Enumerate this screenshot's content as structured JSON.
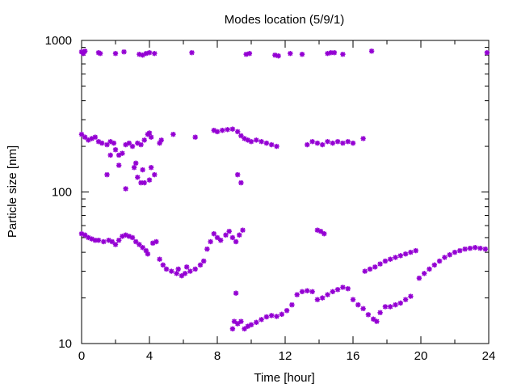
{
  "chart_data": {
    "type": "scatter",
    "title": "Modes location (5/9/1)",
    "xlabel": "Time [hour]",
    "ylabel": "Particle size [nm]",
    "xlim": [
      0,
      24
    ],
    "ylim": [
      10,
      1000
    ],
    "yscale": "log",
    "x_ticks": [
      "0",
      "4",
      "8",
      "12",
      "16",
      "20",
      "24"
    ],
    "y_ticks": [
      "10",
      "100",
      "1000"
    ],
    "grid": false,
    "marker_color": "#9400d3",
    "points": [
      [
        0.0,
        840
      ],
      [
        0.1,
        820
      ],
      [
        0.2,
        850
      ],
      [
        1.0,
        830
      ],
      [
        1.1,
        820
      ],
      [
        2.0,
        820
      ],
      [
        2.5,
        840
      ],
      [
        3.4,
        810
      ],
      [
        3.6,
        800
      ],
      [
        3.8,
        820
      ],
      [
        4.0,
        830
      ],
      [
        4.3,
        820
      ],
      [
        6.5,
        830
      ],
      [
        9.7,
        810
      ],
      [
        9.9,
        820
      ],
      [
        11.4,
        800
      ],
      [
        11.6,
        790
      ],
      [
        12.3,
        820
      ],
      [
        13.0,
        810
      ],
      [
        14.5,
        820
      ],
      [
        14.7,
        830
      ],
      [
        14.9,
        830
      ],
      [
        15.4,
        810
      ],
      [
        17.1,
        850
      ],
      [
        23.9,
        830
      ],
      [
        0.0,
        240
      ],
      [
        0.2,
        230
      ],
      [
        0.4,
        220
      ],
      [
        0.6,
        225
      ],
      [
        0.8,
        230
      ],
      [
        1.0,
        215
      ],
      [
        1.2,
        210
      ],
      [
        1.5,
        205
      ],
      [
        1.7,
        215
      ],
      [
        1.9,
        210
      ],
      [
        2.0,
        190
      ],
      [
        2.2,
        175
      ],
      [
        2.4,
        180
      ],
      [
        2.6,
        205
      ],
      [
        2.8,
        210
      ],
      [
        3.0,
        200
      ],
      [
        3.3,
        210
      ],
      [
        3.5,
        205
      ],
      [
        3.7,
        220
      ],
      [
        3.9,
        240
      ],
      [
        4.0,
        245
      ],
      [
        4.1,
        230
      ],
      [
        4.6,
        210
      ],
      [
        4.7,
        220
      ],
      [
        5.4,
        240
      ],
      [
        6.7,
        230
      ],
      [
        7.8,
        255
      ],
      [
        8.0,
        250
      ],
      [
        8.3,
        255
      ],
      [
        8.6,
        258
      ],
      [
        8.9,
        260
      ],
      [
        9.2,
        250
      ],
      [
        9.4,
        235
      ],
      [
        9.6,
        225
      ],
      [
        9.8,
        220
      ],
      [
        10.0,
        215
      ],
      [
        10.3,
        220
      ],
      [
        10.6,
        215
      ],
      [
        10.9,
        210
      ],
      [
        11.2,
        205
      ],
      [
        11.5,
        200
      ],
      [
        13.3,
        205
      ],
      [
        13.6,
        215
      ],
      [
        13.9,
        210
      ],
      [
        14.2,
        205
      ],
      [
        14.5,
        215
      ],
      [
        14.8,
        210
      ],
      [
        15.1,
        215
      ],
      [
        15.4,
        210
      ],
      [
        15.7,
        215
      ],
      [
        16.0,
        210
      ],
      [
        16.6,
        225
      ],
      [
        1.5,
        130
      ],
      [
        1.7,
        175
      ],
      [
        2.2,
        150
      ],
      [
        2.6,
        105
      ],
      [
        3.1,
        145
      ],
      [
        3.2,
        155
      ],
      [
        3.3,
        125
      ],
      [
        3.5,
        115
      ],
      [
        3.6,
        140
      ],
      [
        3.7,
        115
      ],
      [
        4.0,
        120
      ],
      [
        4.1,
        145
      ],
      [
        4.3,
        130
      ],
      [
        9.2,
        130
      ],
      [
        9.4,
        115
      ],
      [
        0.0,
        53
      ],
      [
        0.2,
        52
      ],
      [
        0.4,
        50
      ],
      [
        0.6,
        49
      ],
      [
        0.8,
        48
      ],
      [
        1.0,
        48
      ],
      [
        1.3,
        47
      ],
      [
        1.6,
        48
      ],
      [
        1.8,
        47
      ],
      [
        2.0,
        45
      ],
      [
        2.2,
        48
      ],
      [
        2.4,
        51
      ],
      [
        2.6,
        52
      ],
      [
        2.8,
        51
      ],
      [
        3.0,
        50
      ],
      [
        3.2,
        47
      ],
      [
        3.4,
        45
      ],
      [
        3.6,
        43
      ],
      [
        3.8,
        41
      ],
      [
        3.9,
        39
      ],
      [
        4.2,
        46
      ],
      [
        4.4,
        47
      ],
      [
        4.6,
        36
      ],
      [
        4.8,
        33
      ],
      [
        5.0,
        31
      ],
      [
        5.3,
        30
      ],
      [
        5.6,
        29
      ],
      [
        5.9,
        28
      ],
      [
        6.1,
        29
      ],
      [
        6.4,
        30
      ],
      [
        6.7,
        31
      ],
      [
        7.0,
        33
      ],
      [
        7.2,
        35
      ],
      [
        7.4,
        42
      ],
      [
        7.6,
        47
      ],
      [
        7.8,
        53
      ],
      [
        8.0,
        50
      ],
      [
        8.2,
        48
      ],
      [
        8.5,
        52
      ],
      [
        8.7,
        55
      ],
      [
        8.9,
        50
      ],
      [
        9.1,
        47
      ],
      [
        9.3,
        52
      ],
      [
        9.5,
        56
      ],
      [
        5.7,
        31
      ],
      [
        6.2,
        32
      ],
      [
        8.9,
        12.5
      ],
      [
        9.0,
        14
      ],
      [
        9.2,
        13.5
      ],
      [
        9.4,
        14
      ],
      [
        9.6,
        12.5
      ],
      [
        9.8,
        13
      ],
      [
        10.0,
        13.3
      ],
      [
        10.3,
        13.8
      ],
      [
        10.6,
        14.4
      ],
      [
        10.9,
        15
      ],
      [
        11.2,
        15.3
      ],
      [
        11.5,
        15.1
      ],
      [
        11.8,
        15.6
      ],
      [
        12.1,
        16.5
      ],
      [
        12.4,
        18
      ],
      [
        12.7,
        21
      ],
      [
        13.0,
        22
      ],
      [
        13.3,
        22.3
      ],
      [
        13.6,
        22
      ],
      [
        13.9,
        19.5
      ],
      [
        14.2,
        20
      ],
      [
        14.5,
        21
      ],
      [
        14.8,
        22
      ],
      [
        15.1,
        22.7
      ],
      [
        15.4,
        23.5
      ],
      [
        15.7,
        23
      ],
      [
        16.0,
        19.5
      ],
      [
        16.3,
        18
      ],
      [
        16.6,
        17
      ],
      [
        16.9,
        15.5
      ],
      [
        17.2,
        14.5
      ],
      [
        17.4,
        14
      ],
      [
        17.6,
        16
      ],
      [
        17.9,
        17.5
      ],
      [
        18.2,
        17.5
      ],
      [
        18.5,
        18
      ],
      [
        18.8,
        18.5
      ],
      [
        19.1,
        19.5
      ],
      [
        19.4,
        20.5
      ],
      [
        9.1,
        21.5
      ],
      [
        13.9,
        56
      ],
      [
        14.1,
        55
      ],
      [
        14.3,
        53
      ],
      [
        16.7,
        30
      ],
      [
        17.0,
        31
      ],
      [
        17.3,
        32
      ],
      [
        17.6,
        33.5
      ],
      [
        17.9,
        35
      ],
      [
        18.2,
        36
      ],
      [
        18.5,
        37
      ],
      [
        18.8,
        38
      ],
      [
        19.1,
        39
      ],
      [
        19.4,
        40
      ],
      [
        19.7,
        41
      ],
      [
        19.9,
        27
      ],
      [
        20.2,
        29
      ],
      [
        20.5,
        31
      ],
      [
        20.8,
        33
      ],
      [
        21.1,
        35
      ],
      [
        21.4,
        37
      ],
      [
        21.7,
        38.5
      ],
      [
        22.0,
        40
      ],
      [
        22.3,
        41
      ],
      [
        22.6,
        42
      ],
      [
        22.9,
        42.5
      ],
      [
        23.2,
        43
      ],
      [
        23.5,
        42.5
      ],
      [
        23.8,
        42
      ]
    ]
  }
}
